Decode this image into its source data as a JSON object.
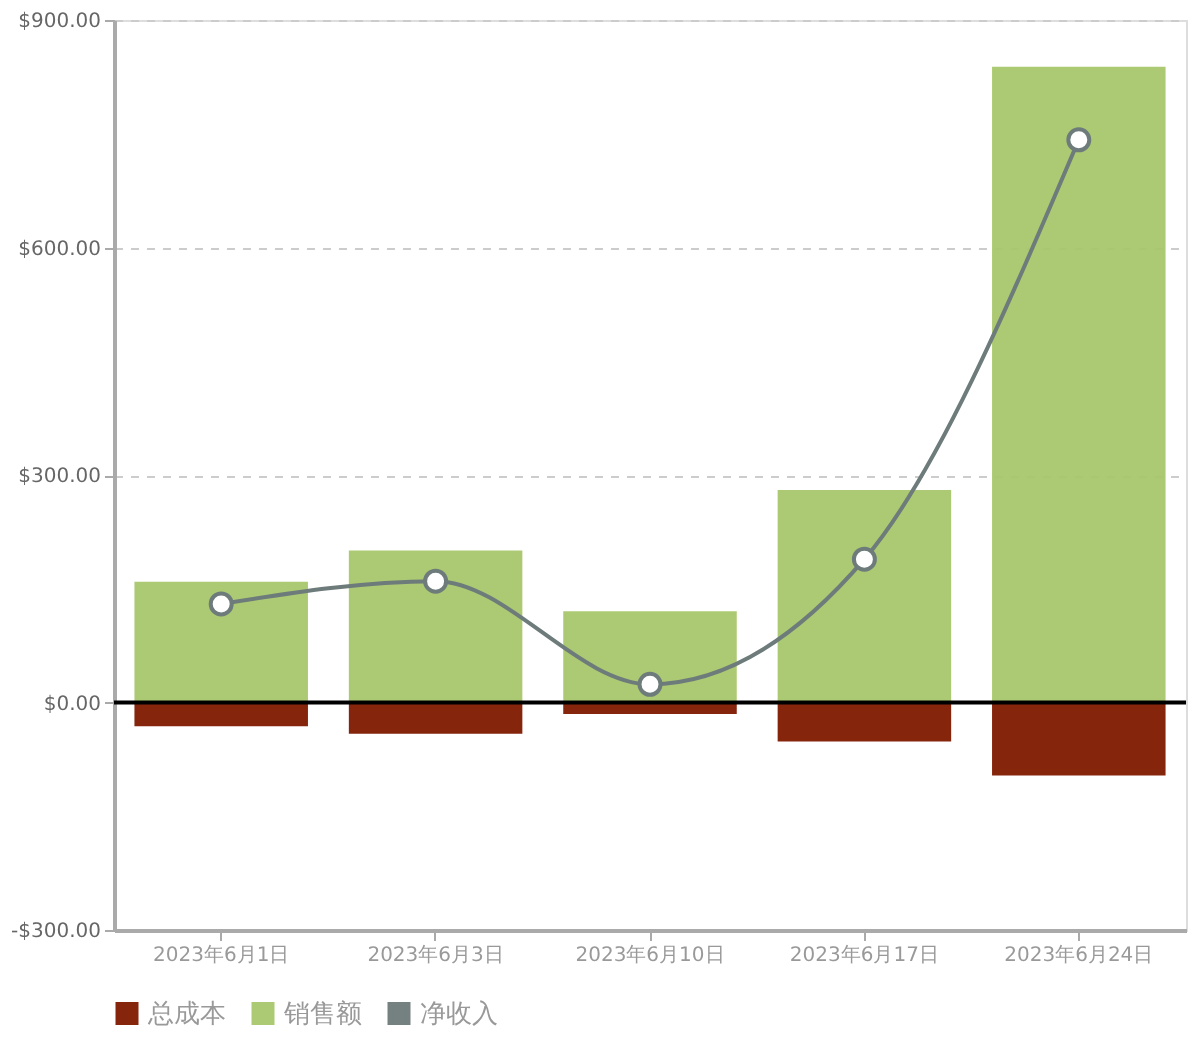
{
  "chart_data": {
    "type": "bar",
    "categories": [
      "2023年6月1日",
      "2023年6月3日",
      "2023年6月10日",
      "2023年6月17日",
      "2023年6月24日"
    ],
    "series": [
      {
        "name": "总成本",
        "color": "#7f1a00",
        "values": [
          -30,
          -40,
          -14,
          -50,
          -95
        ]
      },
      {
        "name": "销售额",
        "color": "#a8c76c",
        "values": [
          158,
          199,
          119,
          279,
          837
        ]
      },
      {
        "name": "净收入",
        "type": "line",
        "color": "#6e7b7b",
        "marker": "circle",
        "values": [
          130,
          160,
          24,
          189,
          742
        ]
      }
    ],
    "ylim": [
      -300,
      900
    ],
    "yticks": [
      {
        "value": -300,
        "label": "-$300.00"
      },
      {
        "value": 0,
        "label": "$0.00"
      },
      {
        "value": 300,
        "label": "$300.00"
      },
      {
        "value": 600,
        "label": "$600.00"
      },
      {
        "value": 900,
        "label": "$900.00"
      }
    ],
    "ref_lines": [
      {
        "axis": "y",
        "value": 0,
        "color": "#000000"
      }
    ],
    "grid": "y",
    "legend": "bottom"
  }
}
